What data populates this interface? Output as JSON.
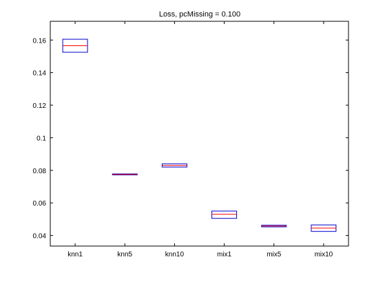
{
  "chart_data": {
    "type": "box",
    "title": "Loss, pcMissing = 0.100",
    "xlabel": "",
    "ylabel": "",
    "categories": [
      "knn1",
      "knn5",
      "knn10",
      "mix1",
      "mix5",
      "mix10"
    ],
    "boxes": [
      {
        "q1": 0.1525,
        "median": 0.1565,
        "q3": 0.1605
      },
      {
        "q1": 0.0772,
        "median": 0.0775,
        "q3": 0.0778
      },
      {
        "q1": 0.082,
        "median": 0.083,
        "q3": 0.084
      },
      {
        "q1": 0.0505,
        "median": 0.053,
        "q3": 0.055
      },
      {
        "q1": 0.0453,
        "median": 0.0458,
        "q3": 0.0463
      },
      {
        "q1": 0.0425,
        "median": 0.0445,
        "q3": 0.0465
      }
    ],
    "yticks": [
      0.04,
      0.06,
      0.08,
      0.1,
      0.12,
      0.14,
      0.16
    ],
    "ytick_labels": [
      "0.04",
      "0.06",
      "0.08",
      "0.1",
      "0.12",
      "0.14",
      "0.16"
    ],
    "ylim": [
      0.0335,
      0.1715
    ],
    "grid": false,
    "colors": {
      "box": "#0000cc",
      "median": "#ff0000",
      "axes": "#000000"
    }
  }
}
